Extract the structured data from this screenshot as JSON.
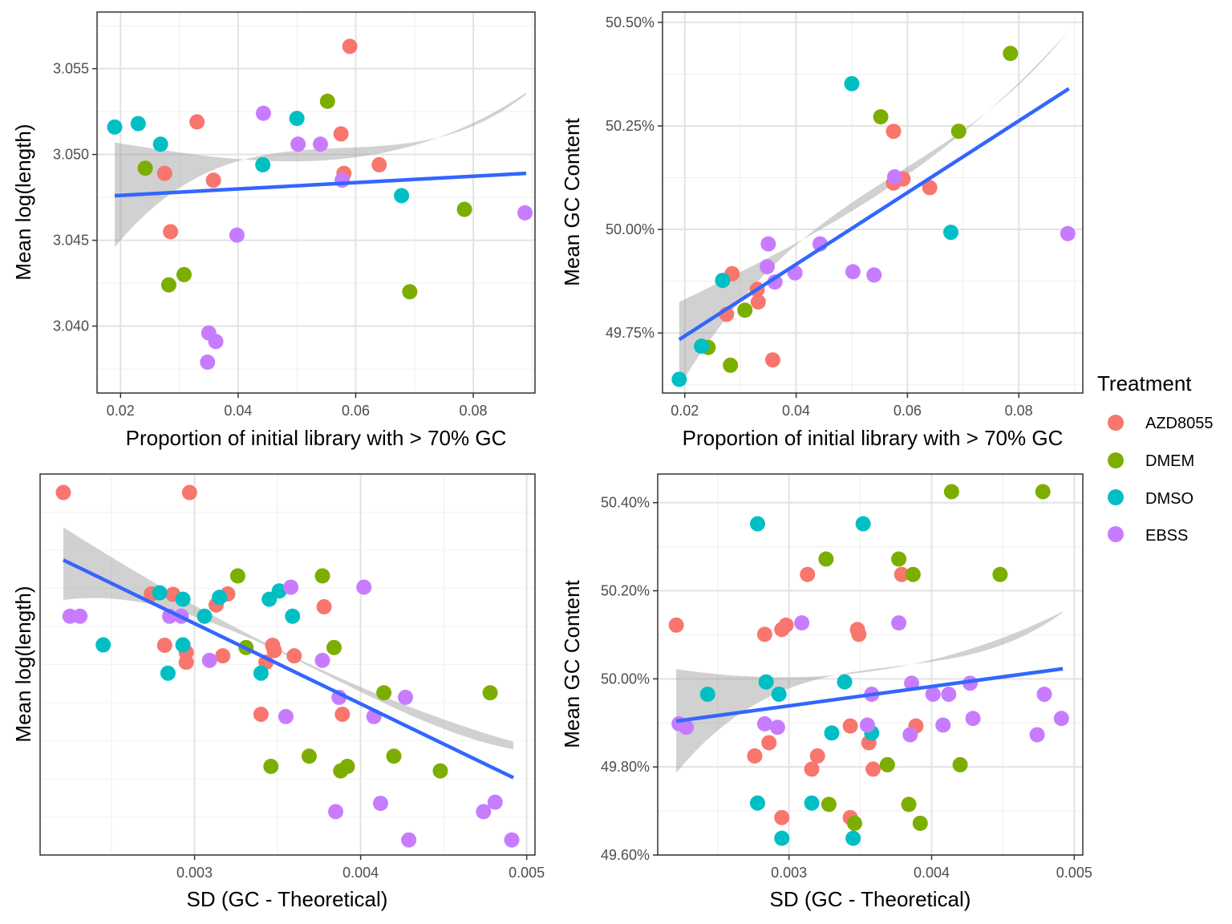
{
  "legend": {
    "title": "Treatment",
    "items": [
      {
        "label": "AZD8055",
        "color": "#F8766D"
      },
      {
        "label": "DMEM",
        "color": "#7CAE00"
      },
      {
        "label": "DMSO",
        "color": "#00BFC4"
      },
      {
        "label": "EBSS",
        "color": "#C77CFF"
      }
    ]
  },
  "chart_data": [
    {
      "type": "scatter",
      "xlabel": "Proportion of initial library with > 70% GC",
      "ylabel": "Mean log(length)",
      "xlim": [
        0.016,
        0.0905
      ],
      "ylim": [
        3.0361,
        3.0583
      ],
      "xticks": [
        0.02,
        0.04,
        0.06,
        0.08
      ],
      "xtick_labels": [
        "0.02",
        "0.04",
        "0.06",
        "0.08"
      ],
      "yticks": [
        3.04,
        3.045,
        3.05,
        3.055
      ],
      "ytick_labels": [
        "3.040",
        "3.045",
        "3.050",
        "3.055"
      ],
      "grid": true,
      "trend": {
        "x": [
          0.019,
          0.089
        ],
        "y": [
          3.0476,
          3.0489
        ],
        "band": [
          [
            3.0446,
            3.0507
          ],
          [
            3.0443,
            3.0536
          ]
        ]
      },
      "series": [
        {
          "name": "AZD8055",
          "x": [
            0.059,
            0.033,
            0.0575,
            0.0275,
            0.0358,
            0.058,
            0.064,
            0.0285
          ],
          "y": [
            3.0563,
            3.0519,
            3.0512,
            3.0489,
            3.0485,
            3.0489,
            3.0494,
            3.0455
          ]
        },
        {
          "name": "DMEM",
          "x": [
            0.0552,
            0.0242,
            0.0785,
            0.0308,
            0.0282,
            0.0692
          ],
          "y": [
            3.0531,
            3.0492,
            3.0468,
            3.043,
            3.0424,
            3.042
          ]
        },
        {
          "name": "DMSO",
          "x": [
            0.019,
            0.023,
            0.0268,
            0.05,
            0.0442,
            0.0678
          ],
          "y": [
            3.0516,
            3.0518,
            3.0506,
            3.0521,
            3.0494,
            3.0476
          ]
        },
        {
          "name": "EBSS",
          "x": [
            0.0443,
            0.0502,
            0.054,
            0.0577,
            0.0888,
            0.0398,
            0.035,
            0.0362,
            0.0348
          ],
          "y": [
            3.0524,
            3.0506,
            3.0506,
            3.0485,
            3.0466,
            3.0453,
            3.0396,
            3.0391,
            3.0379
          ]
        }
      ]
    },
    {
      "type": "scatter",
      "xlabel": "Proportion of initial library with > 70% GC",
      "ylabel": "Mean GC Content",
      "xlim": [
        0.016,
        0.0915
      ],
      "ylim": [
        0.49605,
        0.50525
      ],
      "xticks": [
        0.02,
        0.04,
        0.06,
        0.08
      ],
      "xtick_labels": [
        "0.02",
        "0.04",
        "0.06",
        "0.08"
      ],
      "yticks": [
        0.4975,
        0.5,
        0.5025,
        0.505
      ],
      "ytick_labels": [
        "49.75%",
        "50.00%",
        "50.25%",
        "50.50%"
      ],
      "grid": true,
      "trend": {
        "x": [
          0.019,
          0.089
        ],
        "y": [
          0.49734,
          0.5034
        ],
        "band": [
          [
            0.4962,
            0.49825
          ],
          [
            0.502,
            0.5048
          ]
        ]
      },
      "series": [
        {
          "name": "AZD8055",
          "x": [
            0.0575,
            0.0575,
            0.0592,
            0.064,
            0.0285,
            0.033,
            0.0332,
            0.0275,
            0.0358
          ],
          "y": [
            0.50237,
            0.50112,
            0.50122,
            0.50101,
            0.49893,
            0.49855,
            0.49825,
            0.49795,
            0.49685
          ]
        },
        {
          "name": "DMEM",
          "x": [
            0.0785,
            0.0552,
            0.0692,
            0.0308,
            0.0242,
            0.0282
          ],
          "y": [
            0.50425,
            0.50272,
            0.50237,
            0.49805,
            0.49715,
            0.49672
          ]
        },
        {
          "name": "DMSO",
          "x": [
            0.05,
            0.0678,
            0.0268,
            0.023,
            0.019
          ],
          "y": [
            0.50352,
            0.49993,
            0.49877,
            0.49718,
            0.49638
          ]
        },
        {
          "name": "EBSS",
          "x": [
            0.0577,
            0.035,
            0.0443,
            0.0348,
            0.0398,
            0.0362,
            0.0502,
            0.054,
            0.0888
          ],
          "y": [
            0.50127,
            0.49965,
            0.49965,
            0.4991,
            0.49895,
            0.49873,
            0.49898,
            0.4989,
            0.4999
          ]
        }
      ]
    },
    {
      "type": "scatter",
      "xlabel": "SD (GC - Theoretical)",
      "ylabel": "Mean log(length)",
      "xlim": [
        0.00207,
        0.00505
      ],
      "ylim": [
        0.9,
        11.0
      ],
      "xticks": [
        0.003,
        0.004,
        0.005
      ],
      "xtick_labels": [
        "0.003",
        "0.004",
        "0.005"
      ],
      "yticks": [],
      "ytick_labels": [],
      "grid": true,
      "trend": {
        "x": [
          0.00221,
          0.00492
        ],
        "y": [
          8.72,
          2.95
        ],
        "band": [
          [
            7.66,
            9.59
          ],
          [
            2.2,
            3.9
          ]
        ]
      },
      "series": [
        {
          "name": "AZD8055",
          "x": [
            0.00221,
            0.00297,
            0.00274,
            0.00287,
            0.0032,
            0.00313,
            0.00378,
            0.00282,
            0.00347,
            0.00348,
            0.00295,
            0.0036,
            0.00317,
            0.00343,
            0.00295,
            0.0034,
            0.00389
          ],
          "y": [
            10.51,
            10.51,
            7.82,
            7.81,
            7.82,
            7.53,
            7.48,
            6.46,
            6.46,
            6.32,
            6.27,
            6.18,
            6.18,
            6.01,
            6.01,
            4.63,
            4.63
          ]
        },
        {
          "name": "DMEM",
          "x": [
            0.00326,
            0.00377,
            0.00384,
            0.00331,
            0.00414,
            0.00478,
            0.00369,
            0.00346,
            0.00392,
            0.0042,
            0.00388,
            0.00448
          ],
          "y": [
            8.3,
            8.3,
            6.4,
            6.4,
            5.2,
            5.2,
            3.52,
            3.25,
            3.25,
            3.52,
            3.13,
            3.13
          ]
        },
        {
          "name": "DMSO",
          "x": [
            0.00279,
            0.00293,
            0.00315,
            0.00351,
            0.00345,
            0.00306,
            0.00359,
            0.00245,
            0.00293,
            0.00284,
            0.0034
          ],
          "y": [
            7.85,
            7.68,
            7.73,
            7.9,
            7.68,
            7.23,
            7.23,
            6.47,
            6.47,
            5.72,
            5.72
          ]
        },
        {
          "name": "EBSS",
          "x": [
            0.00225,
            0.00231,
            0.00285,
            0.00292,
            0.00358,
            0.00402,
            0.00309,
            0.00377,
            0.00387,
            0.00427,
            0.00355,
            0.00408,
            0.00385,
            0.00412,
            0.00429,
            0.00474,
            0.00481,
            0.00491
          ],
          "y": [
            7.23,
            7.23,
            7.23,
            7.23,
            8.0,
            8.0,
            6.06,
            6.06,
            5.08,
            5.08,
            4.57,
            4.57,
            2.05,
            2.27,
            1.3,
            2.05,
            2.3,
            1.3
          ]
        }
      ]
    },
    {
      "type": "scatter",
      "xlabel": "SD (GC - Theoretical)",
      "ylabel": "Mean GC Content",
      "xlim": [
        0.00208,
        0.00506
      ],
      "ylim": [
        0.496,
        0.50465
      ],
      "xticks": [
        0.003,
        0.004,
        0.005
      ],
      "xtick_labels": [
        "0.003",
        "0.004",
        "0.005"
      ],
      "yticks": [
        0.496,
        0.498,
        0.5,
        0.502,
        0.504
      ],
      "ytick_labels": [
        "49.60%",
        "49.80%",
        "50.00%",
        "50.20%",
        "50.40%"
      ],
      "grid": true,
      "trend": {
        "x": [
          0.00221,
          0.00492
        ],
        "y": [
          0.49904,
          0.50023
        ],
        "band": [
          [
            0.49787,
            0.50022
          ],
          [
            0.49895,
            0.50153
          ]
        ]
      },
      "series": [
        {
          "name": "AZD8055",
          "x": [
            0.00221,
            0.00313,
            0.00379,
            0.00283,
            0.00295,
            0.00298,
            0.00348,
            0.00349,
            0.00343,
            0.00389,
            0.00286,
            0.00356,
            0.00276,
            0.0032,
            0.00316,
            0.00359,
            0.00295,
            0.00343
          ],
          "y": [
            0.50122,
            0.50237,
            0.50237,
            0.50101,
            0.50112,
            0.50122,
            0.50112,
            0.50101,
            0.49893,
            0.49893,
            0.49855,
            0.49855,
            0.49825,
            0.49825,
            0.49795,
            0.49795,
            0.49685,
            0.49685
          ]
        },
        {
          "name": "DMEM",
          "x": [
            0.00414,
            0.00478,
            0.00326,
            0.00377,
            0.00387,
            0.00448,
            0.00369,
            0.0042,
            0.00328,
            0.00384,
            0.00346,
            0.00392
          ],
          "y": [
            0.50425,
            0.50425,
            0.50272,
            0.50272,
            0.50237,
            0.50237,
            0.49805,
            0.49805,
            0.49715,
            0.49715,
            0.49672,
            0.49672
          ]
        },
        {
          "name": "DMSO",
          "x": [
            0.00278,
            0.00352,
            0.00284,
            0.00339,
            0.00243,
            0.00293,
            0.0033,
            0.00358,
            0.00278,
            0.00316,
            0.00295,
            0.00345
          ],
          "y": [
            0.50352,
            0.50352,
            0.49993,
            0.49993,
            0.49965,
            0.49965,
            0.49877,
            0.49877,
            0.49718,
            0.49718,
            0.49638,
            0.49638
          ]
        },
        {
          "name": "EBSS",
          "x": [
            0.00309,
            0.00377,
            0.00223,
            0.00228,
            0.00283,
            0.00292,
            0.00355,
            0.00386,
            0.00401,
            0.00412,
            0.00427,
            0.00358,
            0.00385,
            0.00408,
            0.00429,
            0.00474,
            0.00479,
            0.00491
          ],
          "y": [
            0.50127,
            0.50127,
            0.49898,
            0.4989,
            0.49898,
            0.4989,
            0.49895,
            0.4999,
            0.49965,
            0.49965,
            0.4999,
            0.49965,
            0.49873,
            0.49895,
            0.4991,
            0.49873,
            0.49965,
            0.4991
          ]
        }
      ]
    }
  ]
}
